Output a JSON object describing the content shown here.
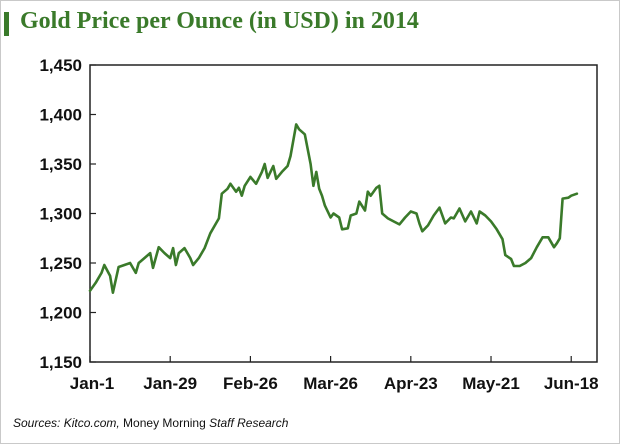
{
  "chart_data": {
    "type": "line",
    "title": "Gold Price per Ounce (in USD) in 2014",
    "xlabel": "",
    "ylabel": "",
    "x_ticks": [
      "Jan-1",
      "Jan-29",
      "Feb-26",
      "Mar-26",
      "Apr-23",
      "May-21",
      "Jun-18"
    ],
    "y_ticks": [
      "1,150",
      "1,200",
      "1,250",
      "1,300",
      "1,350",
      "1,400",
      "1,450"
    ],
    "ylim": [
      1150,
      1450
    ],
    "x_range_days": [
      0,
      177
    ],
    "grid": false,
    "legend": "none",
    "series": [
      {
        "color": "#3a7a2a",
        "points": [
          [
            0,
            1222
          ],
          [
            2,
            1230
          ],
          [
            4,
            1240
          ],
          [
            5,
            1248
          ],
          [
            7,
            1237
          ],
          [
            8,
            1220
          ],
          [
            10,
            1246
          ],
          [
            12,
            1248
          ],
          [
            14,
            1250
          ],
          [
            16,
            1240
          ],
          [
            17,
            1250
          ],
          [
            19,
            1255
          ],
          [
            21,
            1260
          ],
          [
            22,
            1245
          ],
          [
            24,
            1266
          ],
          [
            26,
            1260
          ],
          [
            28,
            1255
          ],
          [
            29,
            1265
          ],
          [
            30,
            1248
          ],
          [
            31,
            1260
          ],
          [
            33,
            1265
          ],
          [
            35,
            1255
          ],
          [
            36,
            1248
          ],
          [
            38,
            1255
          ],
          [
            40,
            1265
          ],
          [
            42,
            1280
          ],
          [
            44,
            1290
          ],
          [
            45,
            1295
          ],
          [
            46,
            1320
          ],
          [
            48,
            1325
          ],
          [
            49,
            1330
          ],
          [
            51,
            1322
          ],
          [
            52,
            1326
          ],
          [
            53,
            1318
          ],
          [
            54,
            1328
          ],
          [
            56,
            1337
          ],
          [
            58,
            1330
          ],
          [
            60,
            1342
          ],
          [
            61,
            1350
          ],
          [
            62,
            1336
          ],
          [
            64,
            1348
          ],
          [
            65,
            1335
          ],
          [
            67,
            1342
          ],
          [
            69,
            1348
          ],
          [
            70,
            1358
          ],
          [
            72,
            1390
          ],
          [
            73,
            1385
          ],
          [
            75,
            1380
          ],
          [
            77,
            1350
          ],
          [
            78,
            1328
          ],
          [
            79,
            1342
          ],
          [
            80,
            1325
          ],
          [
            81,
            1318
          ],
          [
            82,
            1308
          ],
          [
            84,
            1296
          ],
          [
            85,
            1300
          ],
          [
            87,
            1296
          ],
          [
            88,
            1284
          ],
          [
            90,
            1285
          ],
          [
            91,
            1298
          ],
          [
            93,
            1300
          ],
          [
            94,
            1312
          ],
          [
            96,
            1303
          ],
          [
            97,
            1322
          ],
          [
            98,
            1318
          ],
          [
            100,
            1326
          ],
          [
            101,
            1328
          ],
          [
            102,
            1300
          ],
          [
            104,
            1295
          ],
          [
            106,
            1292
          ],
          [
            108,
            1289
          ],
          [
            110,
            1296
          ],
          [
            112,
            1302
          ],
          [
            114,
            1300
          ],
          [
            115,
            1290
          ],
          [
            116,
            1282
          ],
          [
            118,
            1288
          ],
          [
            120,
            1298
          ],
          [
            122,
            1306
          ],
          [
            124,
            1290
          ],
          [
            126,
            1296
          ],
          [
            127,
            1295
          ],
          [
            129,
            1305
          ],
          [
            131,
            1292
          ],
          [
            133,
            1302
          ],
          [
            135,
            1290
          ],
          [
            136,
            1302
          ],
          [
            138,
            1298
          ],
          [
            140,
            1292
          ],
          [
            142,
            1284
          ],
          [
            144,
            1274
          ],
          [
            145,
            1258
          ],
          [
            147,
            1254
          ],
          [
            148,
            1247
          ],
          [
            150,
            1247
          ],
          [
            152,
            1250
          ],
          [
            154,
            1255
          ],
          [
            156,
            1266
          ],
          [
            158,
            1276
          ],
          [
            160,
            1276
          ],
          [
            162,
            1266
          ],
          [
            163,
            1270
          ],
          [
            164,
            1275
          ],
          [
            165,
            1315
          ],
          [
            167,
            1316
          ],
          [
            168,
            1318
          ],
          [
            170,
            1320
          ]
        ]
      }
    ]
  },
  "source": {
    "lead": "Sources: Kitco.com, ",
    "name": "Money Morning",
    "tail": " Staff Research"
  }
}
